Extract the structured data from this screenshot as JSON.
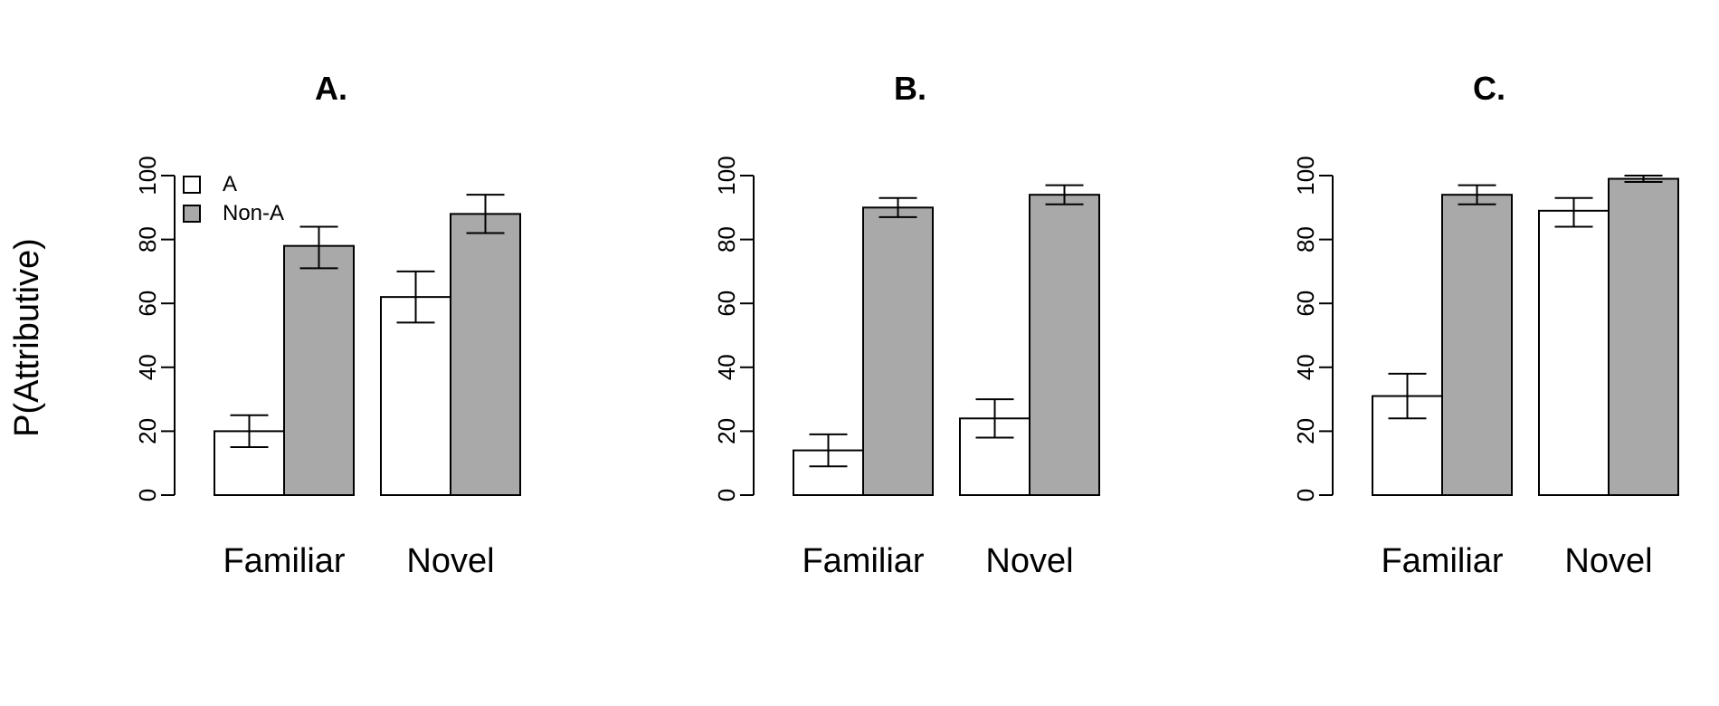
{
  "ylabel": "P(Attributive)",
  "legend": [
    {
      "label": "A",
      "color": "#ffffff"
    },
    {
      "label": "Non-A",
      "color": "#a9a9a9"
    }
  ],
  "chart_data": [
    {
      "type": "bar",
      "title": "A.",
      "categories": [
        "Familiar",
        "Novel"
      ],
      "ylabel": "P(Attributive)",
      "ylim": [
        0,
        100
      ],
      "yticks": [
        "0",
        "20",
        "40",
        "60",
        "80",
        "100"
      ],
      "series": [
        {
          "name": "A",
          "color": "#ffffff",
          "values": [
            20,
            62
          ],
          "err_low": [
            15,
            54
          ],
          "err_high": [
            25,
            70
          ]
        },
        {
          "name": "Non-A",
          "color": "#a9a9a9",
          "values": [
            78,
            88
          ],
          "err_low": [
            71,
            82
          ],
          "err_high": [
            84,
            94
          ]
        }
      ]
    },
    {
      "type": "bar",
      "title": "B.",
      "categories": [
        "Familiar",
        "Novel"
      ],
      "ylim": [
        0,
        100
      ],
      "yticks": [
        "0",
        "20",
        "40",
        "60",
        "80",
        "100"
      ],
      "series": [
        {
          "name": "A",
          "color": "#ffffff",
          "values": [
            14,
            24
          ],
          "err_low": [
            9,
            18
          ],
          "err_high": [
            19,
            30
          ]
        },
        {
          "name": "Non-A",
          "color": "#a9a9a9",
          "values": [
            90,
            94
          ],
          "err_low": [
            87,
            91
          ],
          "err_high": [
            93,
            97
          ]
        }
      ]
    },
    {
      "type": "bar",
      "title": "C.",
      "categories": [
        "Familiar",
        "Novel"
      ],
      "ylim": [
        0,
        100
      ],
      "yticks": [
        "0",
        "20",
        "40",
        "60",
        "80",
        "100"
      ],
      "series": [
        {
          "name": "A",
          "color": "#ffffff",
          "values": [
            31,
            89
          ],
          "err_low": [
            24,
            84
          ],
          "err_high": [
            38,
            93
          ]
        },
        {
          "name": "Non-A",
          "color": "#a9a9a9",
          "values": [
            94,
            99
          ],
          "err_low": [
            91,
            98
          ],
          "err_high": [
            97,
            100
          ]
        }
      ]
    }
  ]
}
